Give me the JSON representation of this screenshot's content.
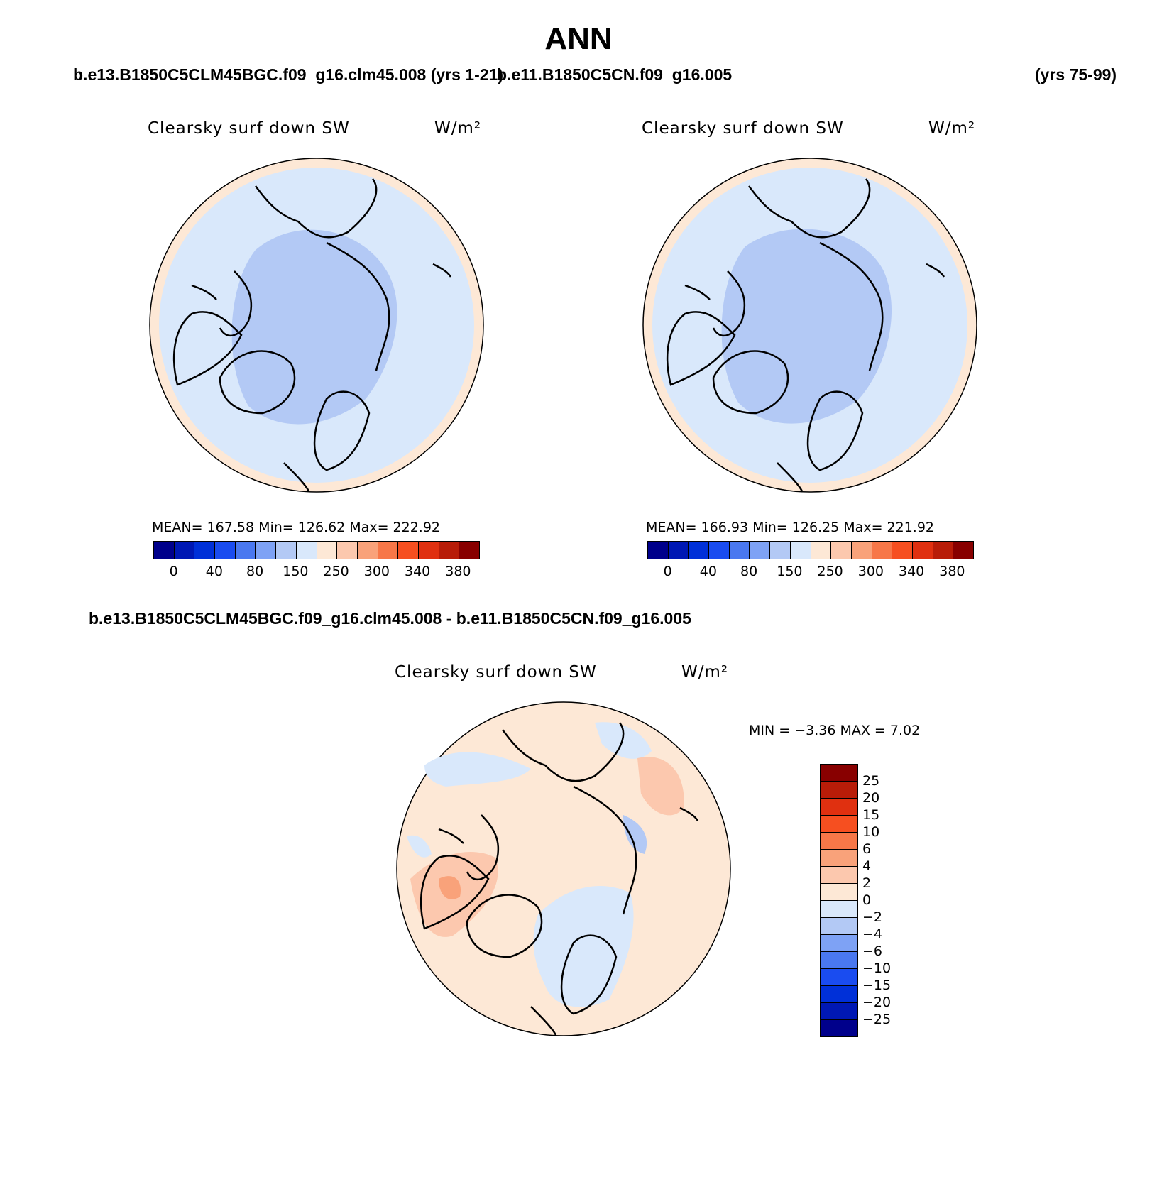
{
  "title": "ANN",
  "header": {
    "case1": "b.e13.B1850C5CLM45BGC.f09_g16.clm45.008 (yrs 1-21)",
    "case2": "b.e11.B1850C5CN.f09_g16.005",
    "case2_years": "(yrs 75-99)",
    "diff_title": "b.e13.B1850C5CLM45BGC.f09_g16.clm45.008 - b.e11.B1850C5CN.f09_g16.005"
  },
  "panels": [
    {
      "variable": "Clearsky surf down SW",
      "units": "W/m²",
      "stats": "MEAN= 167.58   Min= 126.62   Max= 222.92"
    },
    {
      "variable": "Clearsky surf down SW",
      "units": "W/m²",
      "stats": "MEAN= 166.93   Min= 126.25   Max= 221.92"
    }
  ],
  "diff_panel": {
    "variable": "Clearsky surf down SW",
    "units": "W/m²",
    "minmax": "MIN =   −3.36 MAX =    7.02"
  },
  "colorbar_main": {
    "colors": [
      "#00008b",
      "#0018b4",
      "#0030d8",
      "#1a4cf0",
      "#4a78f0",
      "#7ea2f5",
      "#b3c9f5",
      "#d9e8fb",
      "#fde8d6",
      "#fcc8ae",
      "#f9a27a",
      "#f77748",
      "#f64f20",
      "#e03010",
      "#b81c08",
      "#880000"
    ],
    "labels": [
      "0",
      "40",
      "80",
      "150",
      "250",
      "300",
      "340",
      "380"
    ]
  },
  "colorbar_diff": {
    "colors": [
      "#880000",
      "#b81c08",
      "#e03010",
      "#f64f20",
      "#f77748",
      "#f9a27a",
      "#fcc8ae",
      "#fde8d6",
      "#d9e8fb",
      "#b3c9f5",
      "#7ea2f5",
      "#4a78f0",
      "#1a4cf0",
      "#0030d8",
      "#0018b4",
      "#00008b"
    ],
    "labels": [
      "25",
      "20",
      "15",
      "10",
      "6",
      "4",
      "2",
      "0",
      "−2",
      "−4",
      "−6",
      "−10",
      "−15",
      "−20",
      "−25"
    ]
  },
  "map_colors": {
    "outer_ring": "#fde8d6",
    "middle": "#d9e8fb",
    "inner": "#b3c9f5",
    "diff_bg": "#fde8d6",
    "diff_neg": "#d9e8fb",
    "diff_neg2": "#b3c9f5",
    "diff_pos": "#fcc8ae",
    "diff_pos2": "#f9a27a"
  }
}
